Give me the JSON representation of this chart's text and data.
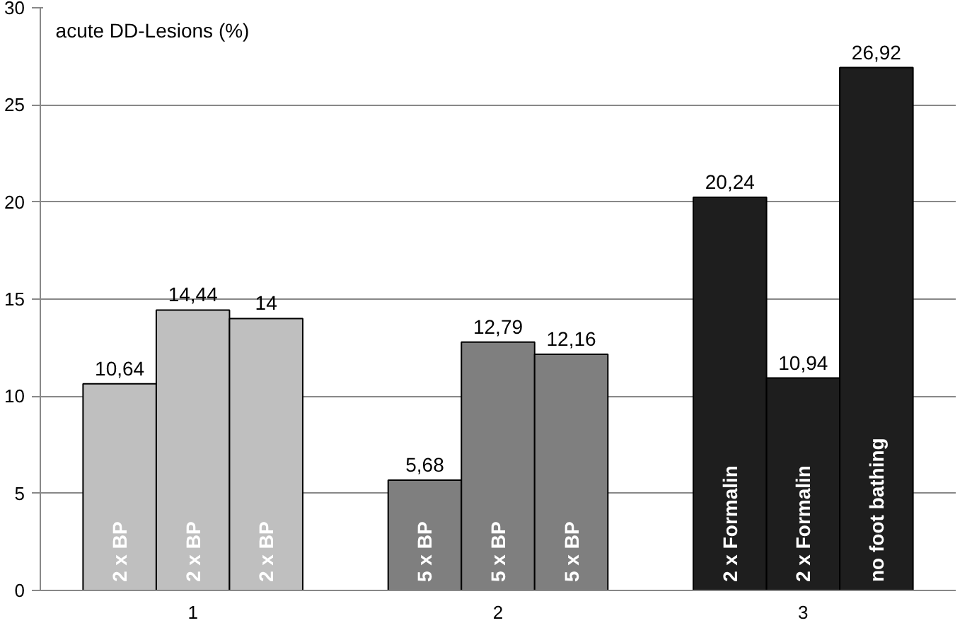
{
  "chart_data": {
    "type": "bar",
    "title": "acute DD-Lesions (%)",
    "categories": [
      "1",
      "2",
      "3"
    ],
    "series": [
      {
        "colors": [
          "#bfbfbf",
          "#7f7f7f",
          "#1e1e1e"
        ],
        "values": [
          10.64,
          5.68,
          20.24
        ],
        "value_labels": [
          "10,64",
          "5,68",
          "20,24"
        ]
      },
      {
        "colors": [
          "#bfbfbf",
          "#7f7f7f",
          "#1e1e1e"
        ],
        "values": [
          14.44,
          12.79,
          10.94
        ],
        "value_labels": [
          "14,44",
          "12,79",
          "10,94"
        ]
      },
      {
        "colors": [
          "#bfbfbf",
          "#7f7f7f",
          "#1e1e1e"
        ],
        "values": [
          14,
          12.16,
          26.92
        ],
        "value_labels": [
          "14",
          "12,16",
          "26,92"
        ]
      }
    ],
    "annotations": [
      "2 x BP",
      "2 x BP",
      "2 x BP",
      "5 x BP",
      "5 x BP",
      "5 x BP",
      "2 x Formalin",
      "2 x Formalin",
      "no foot bathing"
    ],
    "ylim": [
      0,
      30
    ],
    "yticks": [
      0,
      5,
      10,
      15,
      20,
      25,
      30
    ],
    "grid": "y"
  }
}
